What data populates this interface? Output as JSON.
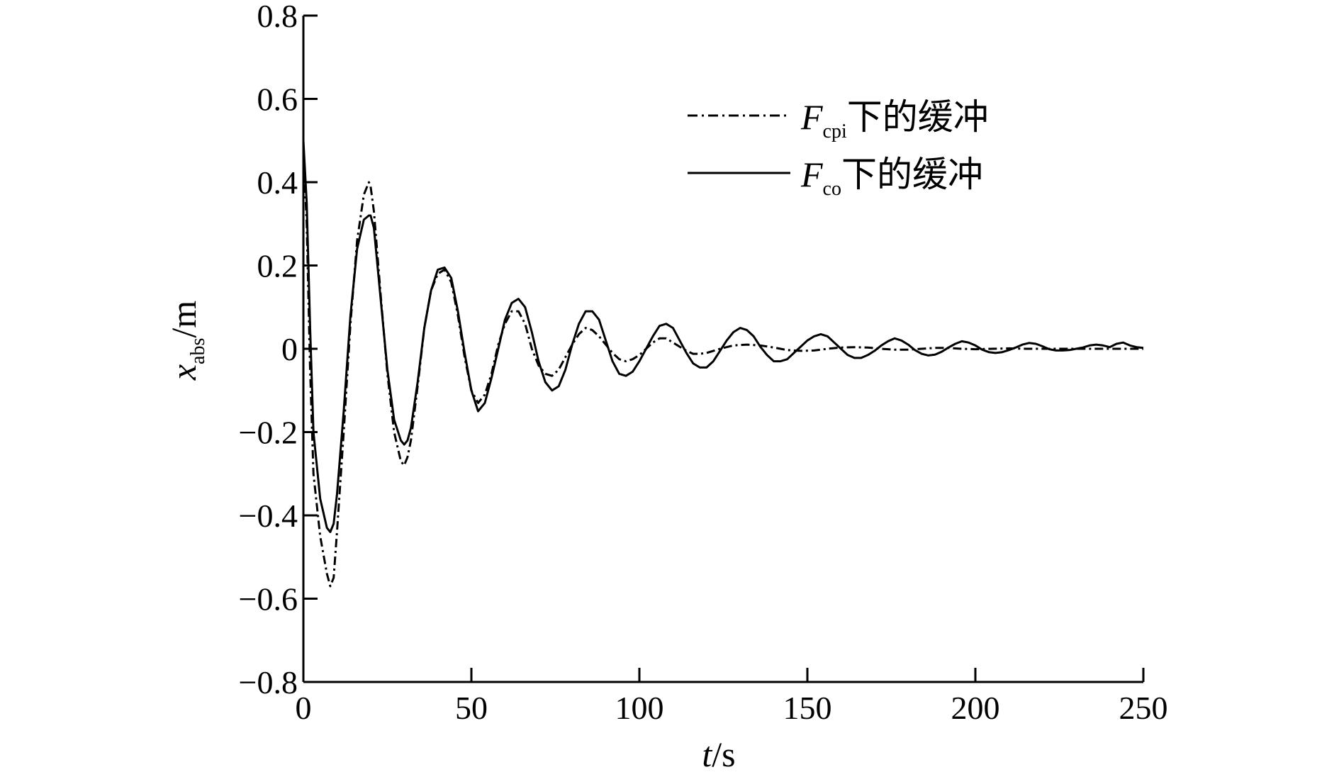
{
  "chart_data": {
    "type": "line",
    "title": "",
    "xlabel": {
      "var": "t",
      "unit": "/s"
    },
    "ylabel": {
      "var": "x",
      "sub": "abs",
      "unit": "/m"
    },
    "xlim": [
      0,
      250
    ],
    "ylim": [
      -0.8,
      0.8
    ],
    "xticks": [
      0,
      50,
      100,
      150,
      200,
      250
    ],
    "yticks": [
      0.8,
      0.6,
      0.4,
      0.2,
      0,
      -0.2,
      -0.4,
      -0.6,
      -0.8
    ],
    "xtick_labels": [
      "0",
      "50",
      "100",
      "150",
      "200",
      "250"
    ],
    "ytick_labels": [
      "0.8",
      "0.6",
      "0.4",
      "0.2",
      "0",
      "−0.2",
      "−0.4",
      "−0.6",
      "−0.8"
    ],
    "grid": false,
    "legend_position": "top-right",
    "series": [
      {
        "name": "F_cpi下的缓冲",
        "legend": {
          "var": "F",
          "sub": "cpi",
          "text": "下的缓冲"
        },
        "style": "dashdot",
        "x": [
          0,
          1,
          2,
          3,
          5,
          7,
          8,
          9,
          10,
          12,
          14,
          16,
          18,
          19.5,
          20,
          21,
          23,
          25,
          27,
          29,
          30,
          31,
          32,
          34,
          36,
          38,
          40,
          42,
          44,
          46,
          48,
          50,
          52,
          54,
          56,
          58,
          60,
          62,
          64,
          66,
          68,
          70,
          72,
          74,
          76,
          78,
          80,
          82,
          84,
          86,
          88,
          90,
          92,
          94,
          96,
          98,
          100,
          102,
          104,
          106,
          108,
          110,
          112,
          114,
          116,
          118,
          120,
          124,
          128,
          132,
          136,
          140,
          144,
          148,
          152,
          156,
          160,
          164,
          168,
          172,
          176,
          180,
          184,
          188,
          192,
          196,
          200,
          205,
          210,
          215,
          220,
          225,
          230,
          235,
          240,
          245,
          250
        ],
        "y": [
          0.48,
          0.3,
          -0.05,
          -0.3,
          -0.45,
          -0.54,
          -0.57,
          -0.55,
          -0.44,
          -0.2,
          0.06,
          0.26,
          0.37,
          0.4,
          0.39,
          0.33,
          0.13,
          -0.06,
          -0.2,
          -0.27,
          -0.28,
          -0.26,
          -0.22,
          -0.09,
          0.05,
          0.14,
          0.18,
          0.19,
          0.16,
          0.08,
          -0.02,
          -0.1,
          -0.13,
          -0.11,
          -0.06,
          0.01,
          0.06,
          0.09,
          0.09,
          0.06,
          0.0,
          -0.04,
          -0.06,
          -0.065,
          -0.05,
          -0.02,
          0.01,
          0.035,
          0.05,
          0.045,
          0.03,
          0.01,
          -0.01,
          -0.025,
          -0.03,
          -0.025,
          -0.015,
          0.0,
          0.015,
          0.025,
          0.025,
          0.015,
          0.005,
          -0.005,
          -0.012,
          -0.012,
          -0.01,
          0.0,
          0.008,
          0.01,
          0.008,
          0.003,
          -0.003,
          -0.005,
          -0.004,
          0.0,
          0.003,
          0.004,
          0.003,
          0.0,
          -0.002,
          -0.002,
          0.0,
          0.002,
          0.002,
          0.0,
          -0.001,
          0.0,
          0.001,
          0.0,
          0.0,
          0.0,
          0.0,
          0.0,
          0.0,
          0.0,
          0.0
        ]
      },
      {
        "name": "F_co下的缓冲",
        "legend": {
          "var": "F",
          "sub": "co",
          "text": "下的缓冲"
        },
        "style": "solid",
        "x": [
          0,
          1,
          2,
          3,
          5,
          7,
          8,
          9,
          10,
          12,
          14,
          16,
          18,
          19.5,
          20,
          21,
          23,
          25,
          27,
          29,
          30,
          31,
          32,
          34,
          36,
          38,
          40,
          42,
          44,
          46,
          48,
          50,
          52,
          54,
          56,
          58,
          60,
          62,
          64,
          66,
          68,
          70,
          72,
          74,
          76,
          78,
          80,
          82,
          84,
          86,
          88,
          90,
          92,
          94,
          96,
          98,
          100,
          102,
          104,
          106,
          108,
          110,
          112,
          114,
          116,
          118,
          120,
          122,
          124,
          126,
          128,
          130,
          132,
          134,
          136,
          138,
          140,
          142,
          144,
          146,
          148,
          150,
          152,
          154,
          156,
          158,
          160,
          162,
          164,
          166,
          168,
          170,
          172,
          174,
          176,
          178,
          180,
          182,
          184,
          186,
          188,
          190,
          192,
          194,
          196,
          198,
          200,
          202,
          204,
          206,
          208,
          210,
          212,
          214,
          216,
          218,
          220,
          222,
          224,
          226,
          228,
          230,
          232,
          234,
          236,
          238,
          240,
          242,
          244,
          246,
          248,
          250
        ],
        "y": [
          0.5,
          0.35,
          0.05,
          -0.2,
          -0.36,
          -0.43,
          -0.44,
          -0.42,
          -0.35,
          -0.15,
          0.08,
          0.24,
          0.31,
          0.32,
          0.32,
          0.29,
          0.12,
          -0.05,
          -0.17,
          -0.22,
          -0.23,
          -0.22,
          -0.19,
          -0.08,
          0.05,
          0.14,
          0.19,
          0.195,
          0.17,
          0.09,
          -0.01,
          -0.1,
          -0.15,
          -0.13,
          -0.07,
          0.0,
          0.07,
          0.11,
          0.12,
          0.1,
          0.04,
          -0.03,
          -0.08,
          -0.1,
          -0.09,
          -0.05,
          0.01,
          0.06,
          0.09,
          0.09,
          0.07,
          0.02,
          -0.03,
          -0.06,
          -0.065,
          -0.055,
          -0.03,
          0.0,
          0.03,
          0.055,
          0.06,
          0.05,
          0.02,
          -0.01,
          -0.035,
          -0.045,
          -0.045,
          -0.03,
          -0.005,
          0.02,
          0.04,
          0.05,
          0.045,
          0.03,
          0.005,
          -0.015,
          -0.03,
          -0.03,
          -0.025,
          -0.01,
          0.005,
          0.02,
          0.03,
          0.035,
          0.03,
          0.015,
          0.0,
          -0.015,
          -0.022,
          -0.022,
          -0.015,
          -0.005,
          0.008,
          0.018,
          0.025,
          0.02,
          0.01,
          -0.003,
          -0.012,
          -0.016,
          -0.014,
          -0.007,
          0.003,
          0.012,
          0.018,
          0.015,
          0.008,
          -0.002,
          -0.008,
          -0.01,
          -0.008,
          -0.003,
          0.003,
          0.01,
          0.014,
          0.012,
          0.006,
          -0.001,
          -0.004,
          -0.004,
          -0.003,
          0.0,
          0.003,
          0.008,
          0.01,
          0.008,
          0.004,
          0.012,
          0.015,
          0.008,
          0.004,
          0.002
        ]
      }
    ]
  }
}
